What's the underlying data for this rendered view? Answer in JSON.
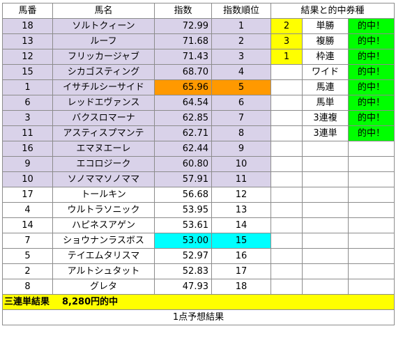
{
  "headers": {
    "number": "馬番",
    "name": "馬名",
    "score": "指数",
    "rank": "指数順位",
    "results": "結果と的中券種"
  },
  "rows": [
    {
      "number": "18",
      "name": "ソルトクィーン",
      "score": "72.99",
      "rank": "1"
    },
    {
      "number": "13",
      "name": "ルーフ",
      "score": "71.68",
      "rank": "2"
    },
    {
      "number": "12",
      "name": "フリッカージャブ",
      "score": "71.43",
      "rank": "3"
    },
    {
      "number": "15",
      "name": "シカゴスティング",
      "score": "68.70",
      "rank": "4"
    },
    {
      "number": "1",
      "name": "イサチルシーサイド",
      "score": "65.96",
      "rank": "5"
    },
    {
      "number": "6",
      "name": "レッドエヴァンス",
      "score": "64.54",
      "rank": "6"
    },
    {
      "number": "3",
      "name": "バクスロマーナ",
      "score": "62.85",
      "rank": "7"
    },
    {
      "number": "11",
      "name": "アスティスプマンテ",
      "score": "62.71",
      "rank": "8"
    },
    {
      "number": "16",
      "name": "エマヌエーレ",
      "score": "62.44",
      "rank": "9"
    },
    {
      "number": "9",
      "name": "エコロジーク",
      "score": "60.80",
      "rank": "10"
    },
    {
      "number": "10",
      "name": "ソノママソノママ",
      "score": "57.91",
      "rank": "11"
    },
    {
      "number": "17",
      "name": "トールキン",
      "score": "56.68",
      "rank": "12"
    },
    {
      "number": "4",
      "name": "ウルトラソニック",
      "score": "53.95",
      "rank": "13"
    },
    {
      "number": "14",
      "name": "ハピネスアゲン",
      "score": "53.61",
      "rank": "14"
    },
    {
      "number": "7",
      "name": "ショウナンラスボス",
      "score": "53.00",
      "rank": "15"
    },
    {
      "number": "5",
      "name": "テイエムタリスマ",
      "score": "52.97",
      "rank": "16"
    },
    {
      "number": "2",
      "name": "アルトシュタット",
      "score": "52.83",
      "rank": "17"
    },
    {
      "number": "8",
      "name": "グレタ",
      "score": "47.93",
      "rank": "18"
    }
  ],
  "finish": [
    "2",
    "3",
    "1"
  ],
  "bet_types": [
    "単勝",
    "複勝",
    "枠連",
    "ワイド",
    "馬連",
    "馬単",
    "3連複",
    "3連単"
  ],
  "hit_label": "的中！",
  "banner": {
    "label": "三連単結果",
    "value": "8,280円的中"
  },
  "footer": "1点予想結果",
  "colors": {
    "selected": "#d9d2e9",
    "rank5": "#ff9900",
    "rank15": "#00ffff",
    "finish": "#ffff00",
    "hit": "#00ff00"
  }
}
